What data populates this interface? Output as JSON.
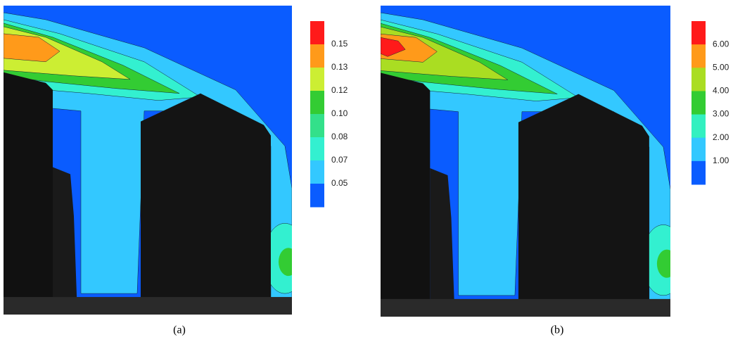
{
  "panels": [
    {
      "caption": "(a)",
      "colorbar": {
        "labels": [
          "0.15",
          "0.13",
          "0.12",
          "0.10",
          "0.08",
          "0.07",
          "0.05"
        ]
      }
    },
    {
      "caption": "(b)",
      "colorbar": {
        "labels": [
          "6.00",
          "5.00",
          "4.00",
          "3.00",
          "2.00",
          "1.00"
        ]
      }
    }
  ]
}
